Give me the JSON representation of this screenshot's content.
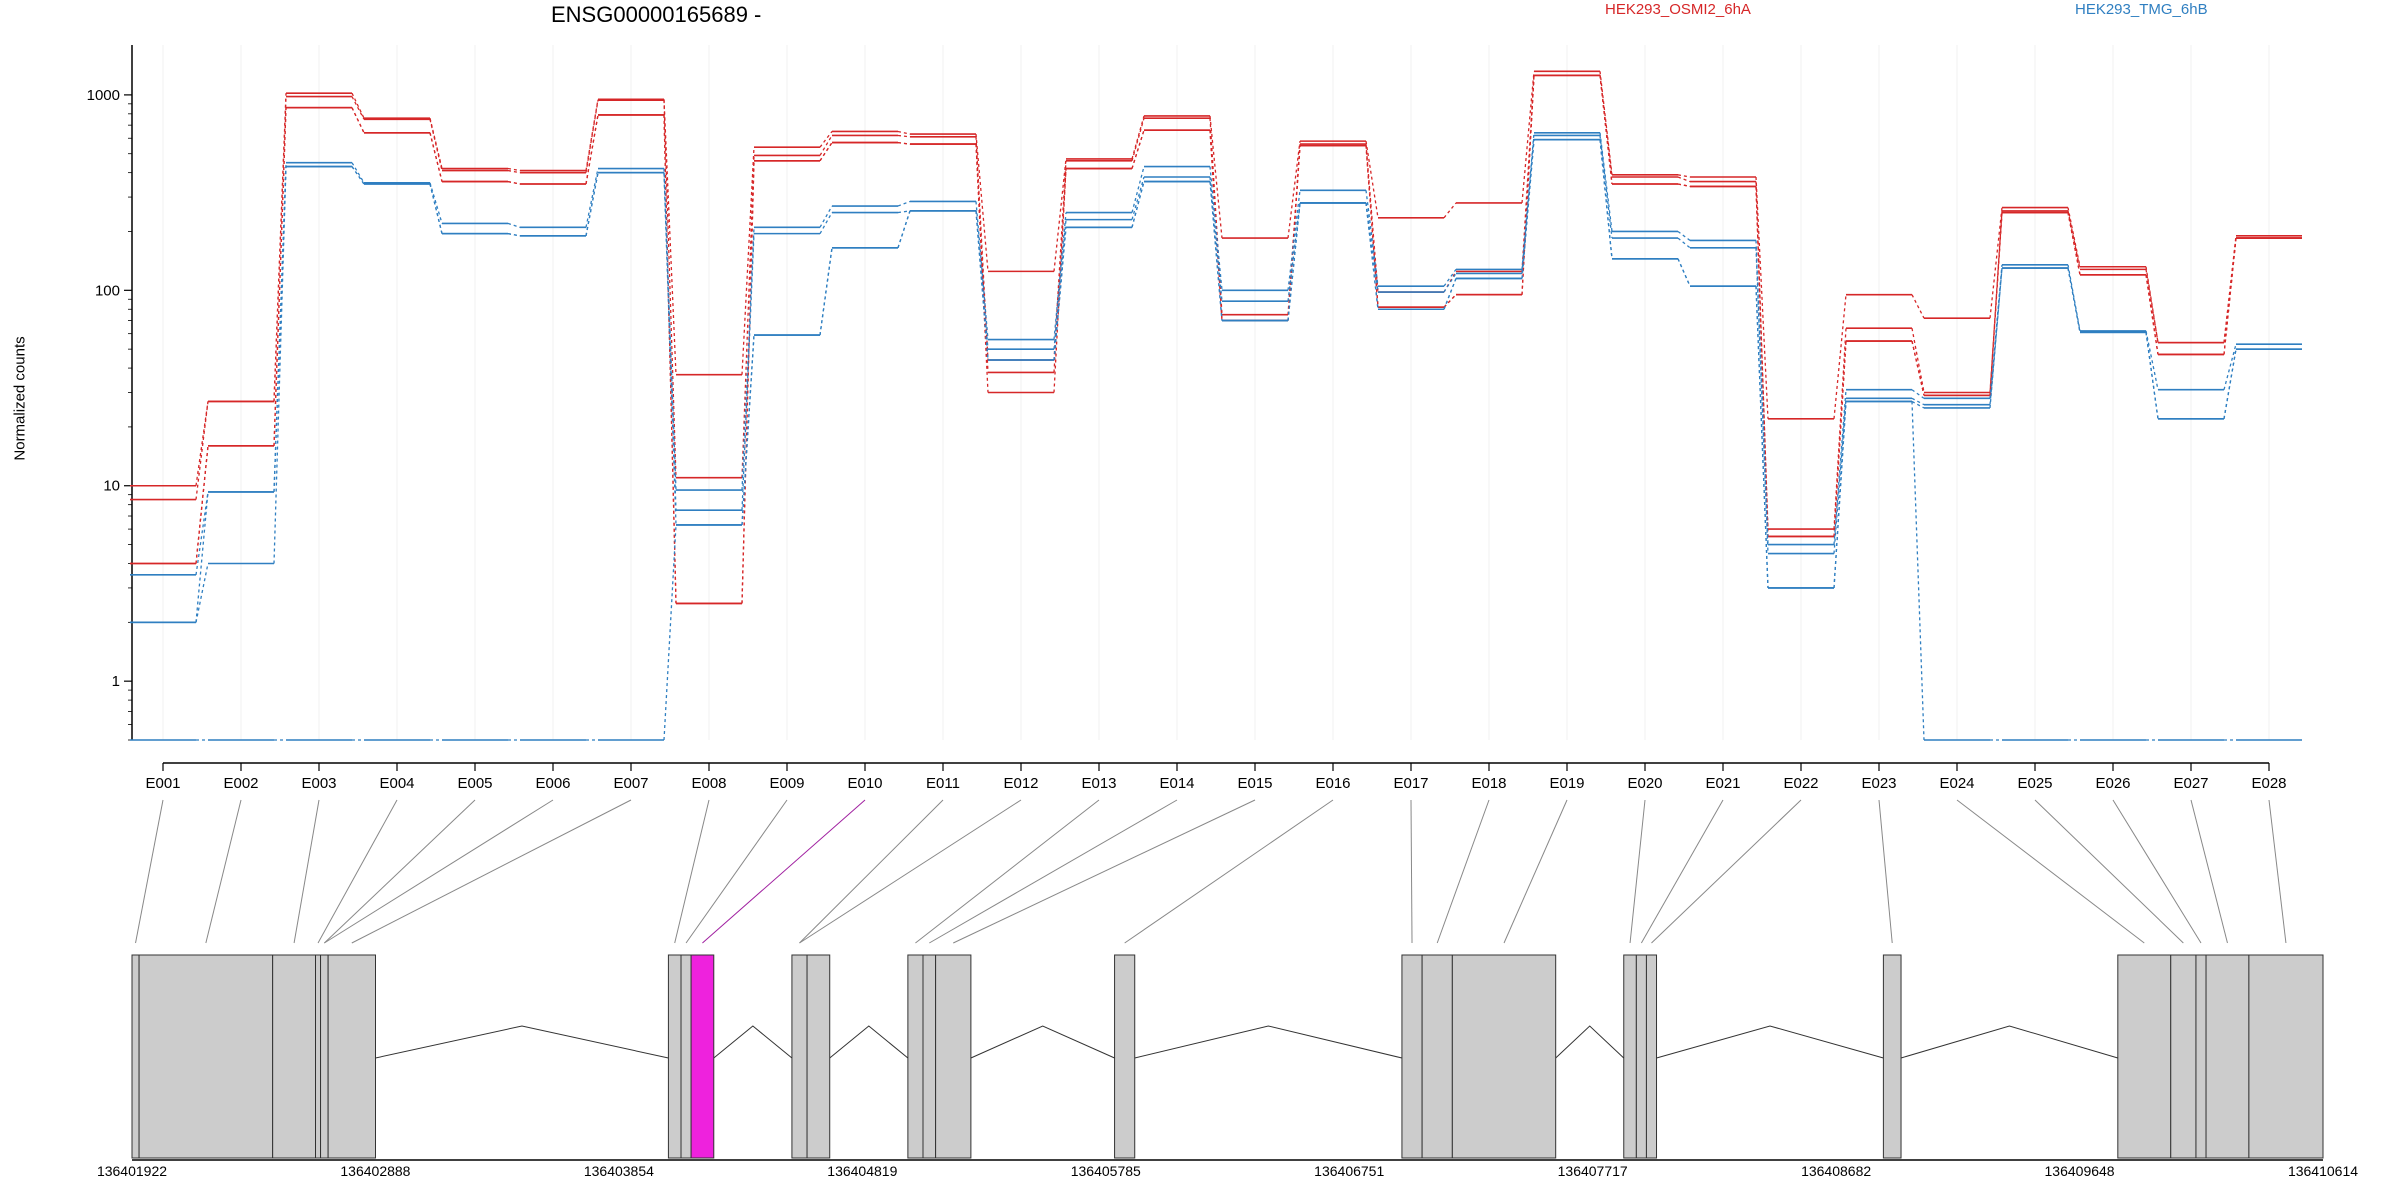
{
  "chart_data": {
    "type": "line",
    "title": "ENSG00000165689 -",
    "ylabel": "Normalized counts",
    "yscale": "log",
    "ylim": [
      0.5,
      1800
    ],
    "yticks": [
      1,
      10,
      100,
      1000
    ],
    "yticklabels": [
      "1",
      "10",
      "100",
      "1000"
    ],
    "categories": [
      "E001",
      "E002",
      "E003",
      "E004",
      "E005",
      "E006",
      "E007",
      "E008",
      "E009",
      "E010",
      "E011",
      "E012",
      "E013",
      "E014",
      "E015",
      "E016",
      "E017",
      "E018",
      "E019",
      "E020",
      "E021",
      "E022",
      "E023",
      "E024",
      "E025",
      "E026",
      "E027",
      "E028"
    ],
    "groups": [
      {
        "name": "HEK293_OSMI2_6hA",
        "color": "#d62728"
      },
      {
        "name": "HEK293_TMG_6hB",
        "color": "#2f7fc1"
      }
    ],
    "series": [
      {
        "group": 0,
        "values": [
          10,
          27,
          1020,
          760,
          420,
          410,
          950,
          37,
          540,
          650,
          630,
          125,
          470,
          780,
          185,
          580,
          235,
          280,
          1320,
          390,
          380,
          22,
          95,
          72,
          265,
          132,
          54,
          190
        ]
      },
      {
        "group": 0,
        "values": [
          8.5,
          27,
          980,
          750,
          410,
          400,
          940,
          11,
          490,
          620,
          610,
          44,
          460,
          760,
          75,
          560,
          98,
          125,
          1260,
          380,
          360,
          6,
          64,
          30,
          255,
          128,
          54,
          185
        ]
      },
      {
        "group": 0,
        "values": [
          4,
          16,
          860,
          640,
          360,
          350,
          790,
          2.5,
          460,
          570,
          560,
          38,
          420,
          660,
          70,
          550,
          82,
          95,
          1260,
          350,
          340,
          5.5,
          55,
          29,
          250,
          120,
          47,
          185
        ]
      },
      {
        "group": 0,
        "values": [
          4,
          16,
          860,
          640,
          360,
          350,
          790,
          2.5,
          460,
          570,
          560,
          30,
          420,
          660,
          70,
          550,
          82,
          95,
          1260,
          350,
          340,
          5.5,
          55,
          29,
          250,
          120,
          47,
          185
        ]
      },
      {
        "group": 1,
        "values": [
          3.5,
          9.3,
          450,
          355,
          220,
          210,
          420,
          9.5,
          210,
          270,
          285,
          56,
          250,
          430,
          100,
          325,
          105,
          128,
          640,
          200,
          180,
          5,
          31,
          28,
          135,
          62,
          31,
          53
        ]
      },
      {
        "group": 1,
        "values": [
          2,
          9.3,
          430,
          350,
          195,
          190,
          400,
          7.5,
          195,
          250,
          255,
          50,
          230,
          380,
          88,
          280,
          98,
          122,
          620,
          185,
          165,
          4.5,
          28,
          26,
          130,
          61,
          22,
          50
        ]
      },
      {
        "group": 1,
        "values": [
          2,
          4,
          430,
          350,
          195,
          190,
          400,
          6.3,
          59,
          165,
          255,
          44,
          210,
          360,
          70,
          280,
          80,
          115,
          590,
          145,
          105,
          3,
          27,
          25,
          130,
          61,
          22,
          50
        ]
      },
      {
        "group": 1,
        "values": [
          0.5,
          0.5,
          0.5,
          0.5,
          0.5,
          0.5,
          0.5,
          6.3,
          59,
          165,
          255,
          44,
          210,
          360,
          70,
          280,
          80,
          115,
          590,
          145,
          105,
          3,
          27,
          0.5,
          0.5,
          0.5,
          0.5,
          0.5
        ]
      }
    ],
    "gene_model": {
      "coord_ticks": [
        "136401922",
        "136402888",
        "136403854",
        "136404819",
        "136405785",
        "136406751",
        "136407717",
        "136408682",
        "136409648",
        "136410614"
      ],
      "coord_range": [
        136401922,
        136410614
      ],
      "exons": [
        [
          136401922,
          136401950
        ],
        [
          136401950,
          136402480
        ],
        [
          136402480,
          136402650
        ],
        [
          136402650,
          136402670
        ],
        [
          136402670,
          136402700
        ],
        [
          136402700,
          136402888
        ],
        [
          136404050,
          136404100
        ],
        [
          136404100,
          136404140
        ],
        [
          136404140,
          136404230
        ],
        [
          136404540,
          136404600
        ],
        [
          136404600,
          136404690
        ],
        [
          136405000,
          136405060
        ],
        [
          136405060,
          136405110
        ],
        [
          136405110,
          136405250
        ],
        [
          136405820,
          136405900
        ],
        [
          136406960,
          136407040
        ],
        [
          136407040,
          136407160
        ],
        [
          136407160,
          136407570
        ],
        [
          136407840,
          136407890
        ],
        [
          136407890,
          136407930
        ],
        [
          136407930,
          136407970
        ],
        [
          136408870,
          136408940
        ],
        [
          136409800,
          136410010
        ],
        [
          136410010,
          136410110
        ],
        [
          136410110,
          136410150
        ],
        [
          136410150,
          136410320
        ],
        [
          136410320,
          136410614
        ]
      ],
      "highlight": "E010",
      "exon_map": [
        0,
        1,
        2,
        3,
        4,
        4,
        5,
        6,
        7,
        8,
        9,
        9,
        11,
        12,
        13,
        14,
        15,
        16,
        17,
        18,
        19,
        20,
        21,
        22,
        23,
        24,
        25,
        26
      ]
    }
  }
}
